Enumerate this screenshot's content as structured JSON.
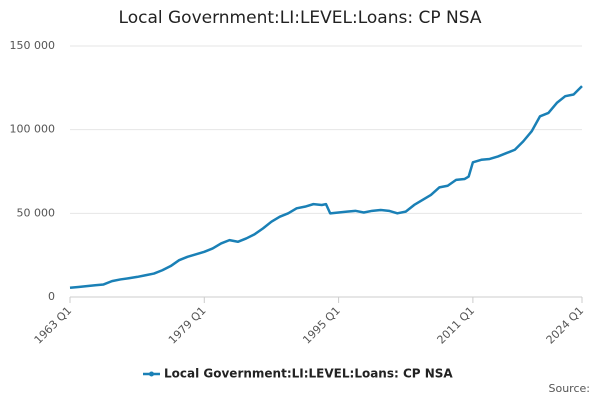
{
  "chart_data": {
    "type": "line",
    "title": "Local Government:LI:LEVEL:Loans: CP NSA",
    "source": "Source:",
    "x": [
      1963,
      1964,
      1965,
      1966,
      1967,
      1968,
      1969,
      1970,
      1971,
      1972,
      1973,
      1974,
      1975,
      1976,
      1977,
      1978,
      1979,
      1980,
      1981,
      1982,
      1983,
      1984,
      1985,
      1986,
      1987,
      1988,
      1989,
      1990,
      1991,
      1992,
      1993,
      1993.5,
      1994,
      1995,
      1996,
      1997,
      1998,
      1999,
      2000,
      2001,
      2002,
      2003,
      2004,
      2005,
      2006,
      2007,
      2008,
      2009,
      2010,
      2010.5,
      2011,
      2012,
      2013,
      2014,
      2015,
      2016,
      2017,
      2018,
      2019,
      2020,
      2021,
      2022,
      2023,
      2024
    ],
    "series": [
      {
        "name": "Local Government:LI:LEVEL:Loans: CP NSA",
        "color": "#1a80b6",
        "values": [
          5500,
          6000,
          6500,
          7000,
          7500,
          9500,
          10500,
          11200,
          12000,
          13000,
          14000,
          16000,
          18500,
          22000,
          24000,
          25500,
          27000,
          29000,
          32000,
          34000,
          33000,
          35000,
          37500,
          41000,
          45000,
          48000,
          50000,
          53000,
          54000,
          55500,
          55000,
          55500,
          50000,
          50500,
          51000,
          51500,
          50500,
          51500,
          52000,
          51500,
          50000,
          51000,
          55000,
          58000,
          61000,
          65500,
          66500,
          70000,
          70500,
          72000,
          80500,
          82000,
          82500,
          84000,
          86000,
          88000,
          93000,
          99000,
          108000,
          110000,
          116000,
          120000,
          121000,
          126000
        ]
      }
    ],
    "xlim": [
      1963,
      2024
    ],
    "xticks": [
      {
        "value": 1963,
        "label": "1963 Q1"
      },
      {
        "value": 1979,
        "label": "1979 Q1"
      },
      {
        "value": 1995,
        "label": "1995 Q1"
      },
      {
        "value": 2011,
        "label": "2011 Q1"
      },
      {
        "value": 2024,
        "label": "2024 Q1"
      }
    ],
    "ylim": [
      0,
      150000
    ],
    "yticks": [
      0,
      {
        "value": 50000,
        "label": "50 000"
      },
      {
        "value": 100000,
        "label": "100 000"
      },
      {
        "value": 150000,
        "label": "150 000"
      }
    ],
    "grid": true
  }
}
